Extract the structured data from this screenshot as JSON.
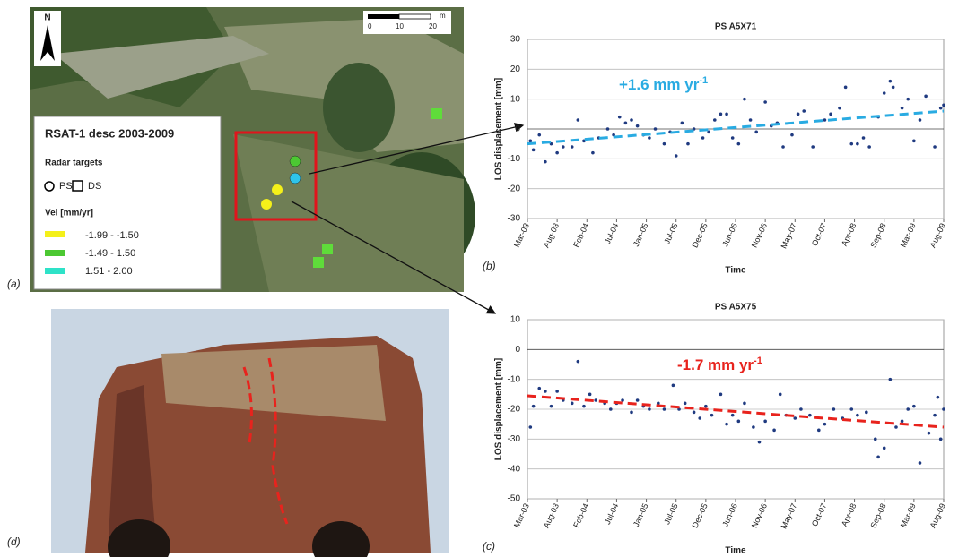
{
  "map": {
    "north": "N",
    "scale_labels": [
      "0",
      "10",
      "20"
    ],
    "scale_unit": "m",
    "legend_title": "RSAT-1 desc 2003-2009",
    "targets_title": "Radar targets",
    "ps": "PS",
    "ds": "DS",
    "vel_title": "Vel [mm/yr]",
    "classes": [
      "-1.99 - -1.50",
      "-1.49 - 1.50",
      "1.51 - 2.00"
    ],
    "panel_label": "(a)"
  },
  "photo": {
    "panel_label": "(d)"
  },
  "chart_data": [
    {
      "type": "scatter",
      "title": "PS A5X71",
      "ylabel": "LOS displacement [mm]",
      "xlabel": "Time",
      "panel_label": "(b)",
      "color": "#1f3a80",
      "x": [
        0.1,
        0.2,
        0.4,
        0.6,
        0.8,
        1.0,
        1.2,
        1.5,
        1.7,
        1.9,
        2.2,
        2.4,
        2.7,
        2.9,
        3.1,
        3.3,
        3.5,
        3.7,
        3.9,
        4.1,
        4.3,
        4.6,
        4.8,
        5.0,
        5.2,
        5.4,
        5.6,
        5.9,
        6.1,
        6.3,
        6.5,
        6.7,
        6.9,
        7.1,
        7.3,
        7.5,
        7.7,
        8.0,
        8.2,
        8.4,
        8.6,
        8.9,
        9.1,
        9.3,
        9.6,
        10.0,
        10.2,
        10.5,
        10.7,
        10.9,
        11.1,
        11.3,
        11.5,
        11.8,
        12.0,
        12.2,
        12.3,
        12.6,
        12.8,
        13.0,
        13.2,
        13.4,
        13.7,
        13.9,
        14.0
      ],
      "values": [
        -4,
        -7,
        -2,
        -11,
        -5,
        -8,
        -6,
        -6,
        3,
        -4,
        -8,
        -3,
        0,
        -2,
        4,
        2,
        3,
        1,
        -2,
        -3,
        0,
        -5,
        -1,
        -9,
        2,
        -5,
        0,
        -3,
        -1,
        3,
        5,
        5,
        -3,
        -5,
        10,
        3,
        -1,
        9,
        1,
        2,
        -6,
        -2,
        5,
        6,
        -6,
        3,
        5,
        7,
        14,
        -5,
        -5,
        -3,
        -6,
        4,
        12,
        16,
        14,
        7,
        10,
        -4,
        3,
        11,
        -6,
        7,
        8
      ],
      "ylim": [
        -30,
        30
      ],
      "yticks": [
        -30,
        -20,
        -10,
        0,
        10,
        20,
        30
      ],
      "xlim": [
        0,
        14
      ],
      "xticks": [
        {
          "value": 0,
          "label": "Mar-03"
        },
        {
          "value": 1,
          "label": "Aug-03"
        },
        {
          "value": 2,
          "label": "Feb-04"
        },
        {
          "value": 3,
          "label": "Jul-04"
        },
        {
          "value": 4,
          "label": "Jan-05"
        },
        {
          "value": 5,
          "label": "Jul-05"
        },
        {
          "value": 6,
          "label": "Dec-05"
        },
        {
          "value": 7,
          "label": "Jun-06"
        },
        {
          "value": 8,
          "label": "Nov-06"
        },
        {
          "value": 9,
          "label": "May-07"
        },
        {
          "value": 10,
          "label": "Oct-07"
        },
        {
          "value": 11,
          "label": "Apr-08"
        },
        {
          "value": 12,
          "label": "Sep-08"
        },
        {
          "value": 13,
          "label": "Mar-09"
        },
        {
          "value": 14,
          "label": "Aug-09"
        }
      ],
      "grid": true,
      "trend": {
        "x": [
          0,
          14
        ],
        "values": [
          -5,
          6
        ],
        "color": "#29abe2"
      },
      "trend_label": "+1.6 mm yr",
      "trend_label_sup": "-1"
    },
    {
      "type": "scatter",
      "title": "PS A5X75",
      "ylabel": "LOS displacement [mm]",
      "xlabel": "Time",
      "panel_label": "(c)",
      "color": "#1f3a80",
      "x": [
        0.1,
        0.2,
        0.4,
        0.6,
        0.8,
        1.0,
        1.2,
        1.5,
        1.7,
        1.9,
        2.1,
        2.3,
        2.6,
        2.8,
        3.0,
        3.2,
        3.5,
        3.7,
        3.9,
        4.1,
        4.4,
        4.6,
        4.9,
        5.1,
        5.3,
        5.6,
        5.8,
        6.0,
        6.2,
        6.5,
        6.7,
        6.9,
        7.1,
        7.3,
        7.6,
        7.8,
        8.0,
        8.3,
        8.5,
        8.7,
        9.0,
        9.2,
        9.5,
        9.8,
        10.0,
        10.3,
        10.6,
        10.9,
        11.1,
        11.4,
        11.7,
        11.8,
        12.0,
        12.2,
        12.4,
        12.6,
        12.8,
        13.0,
        13.2,
        13.5,
        13.7,
        13.8,
        13.9,
        14.0
      ],
      "values": [
        -26,
        -19,
        -13,
        -14,
        -19,
        -14,
        -17,
        -18,
        -4,
        -19,
        -15,
        -17,
        -18,
        -20,
        -18,
        -17,
        -21,
        -17,
        -19,
        -20,
        -18,
        -20,
        -12,
        -20,
        -18,
        -21,
        -23,
        -19,
        -22,
        -15,
        -25,
        -22,
        -24,
        -18,
        -26,
        -31,
        -24,
        -27,
        -15,
        -22,
        -23,
        -20,
        -22,
        -27,
        -25,
        -20,
        -23,
        -20,
        -22,
        -21,
        -30,
        -36,
        -33,
        -10,
        -26,
        -24,
        -20,
        -19,
        -38,
        -28,
        -22,
        -16,
        -30,
        -20
      ],
      "ylim": [
        -50,
        10
      ],
      "yticks": [
        -50,
        -40,
        -30,
        -20,
        -10,
        0,
        10
      ],
      "xlim": [
        0,
        14
      ],
      "xticks": [
        {
          "value": 0,
          "label": "Mar-03"
        },
        {
          "value": 1,
          "label": "Aug-03"
        },
        {
          "value": 2,
          "label": "Feb-04"
        },
        {
          "value": 3,
          "label": "Jul-04"
        },
        {
          "value": 4,
          "label": "Jan-05"
        },
        {
          "value": 5,
          "label": "Jul-05"
        },
        {
          "value": 6,
          "label": "Dec-05"
        },
        {
          "value": 7,
          "label": "Jun-06"
        },
        {
          "value": 8,
          "label": "Nov-06"
        },
        {
          "value": 9,
          "label": "May-07"
        },
        {
          "value": 10,
          "label": "Oct-07"
        },
        {
          "value": 11,
          "label": "Apr-08"
        },
        {
          "value": 12,
          "label": "Sep-08"
        },
        {
          "value": 13,
          "label": "Mar-09"
        },
        {
          "value": 14,
          "label": "Aug-09"
        }
      ],
      "grid": true,
      "trend": {
        "x": [
          0,
          14
        ],
        "values": [
          -15.5,
          -26
        ],
        "color": "#e8231d"
      },
      "trend_label": "-1.7 mm yr",
      "trend_label_sup": "-1"
    }
  ]
}
